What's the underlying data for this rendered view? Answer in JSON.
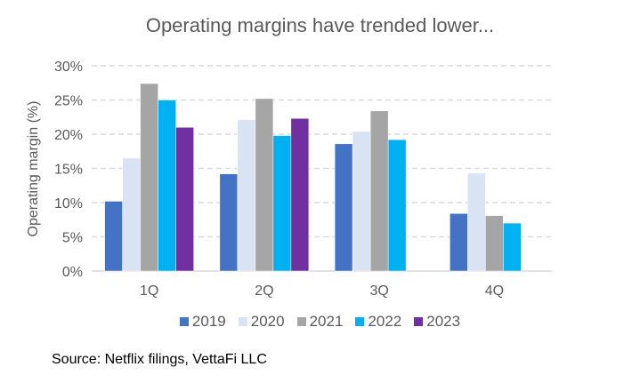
{
  "chart_data": {
    "type": "bar",
    "title": "Operating margins have trended lower...",
    "xlabel": "",
    "ylabel": "Operating margin (%)",
    "ylim": [
      0,
      30
    ],
    "yticks": [
      "0%",
      "5%",
      "10%",
      "15%",
      "20%",
      "25%",
      "30%"
    ],
    "grid": true,
    "legend_position": "bottom",
    "categories": [
      "1Q",
      "2Q",
      "3Q",
      "4Q"
    ],
    "series": [
      {
        "name": "2019",
        "color": "#4472C4",
        "values": [
          10.2,
          14.2,
          18.6,
          8.4
        ]
      },
      {
        "name": "2020",
        "color": "#DAE3F3",
        "values": [
          16.5,
          22.1,
          20.4,
          14.3
        ]
      },
      {
        "name": "2021",
        "color": "#A5A5A5",
        "values": [
          27.4,
          25.2,
          23.4,
          8.1
        ]
      },
      {
        "name": "2022",
        "color": "#00B0F0",
        "values": [
          25.0,
          19.8,
          19.2,
          7.0
        ]
      },
      {
        "name": "2023",
        "color": "#7030A0",
        "values": [
          21.0,
          22.3,
          null,
          null
        ]
      }
    ]
  },
  "source": "Source: Netflix filings, VettaFi LLC"
}
